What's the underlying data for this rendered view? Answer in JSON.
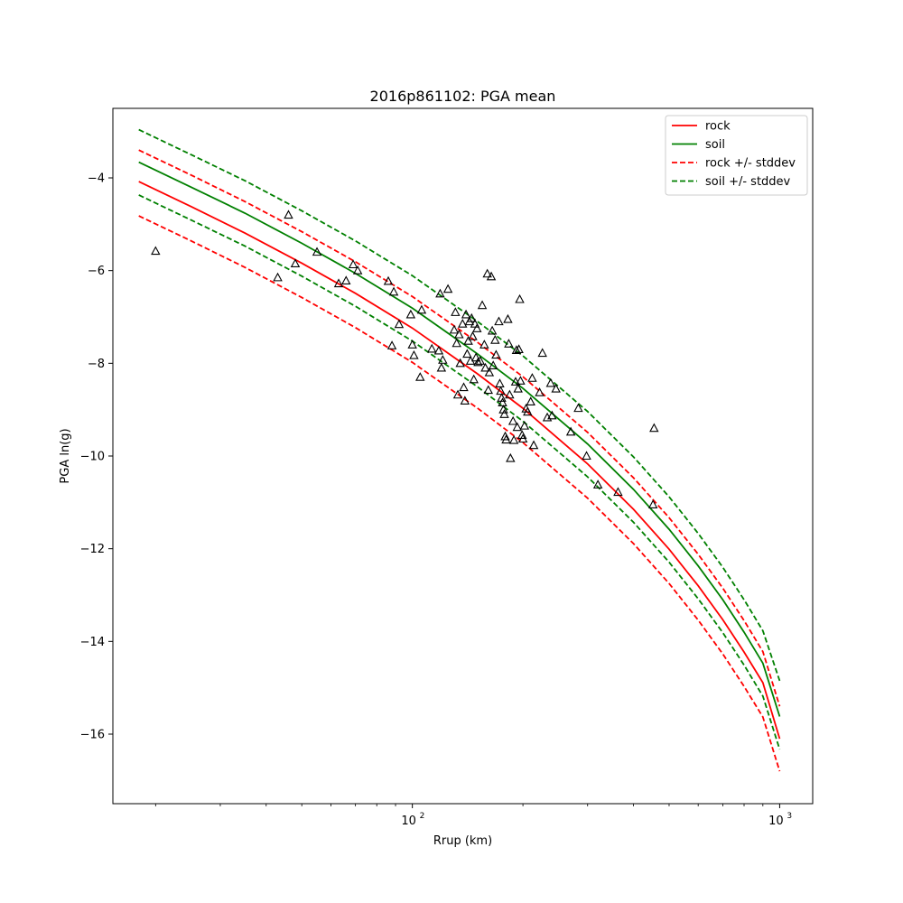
{
  "chart_data": {
    "type": "scatter",
    "title": "2016p861102: PGA mean",
    "xlabel": "Rrup (km)",
    "ylabel": "PGA ln(g)",
    "x_scale": "log",
    "xlim": [
      15.3,
      1230
    ],
    "ylim": [
      -17.5,
      -2.5
    ],
    "x_ticks": [
      {
        "value": 100,
        "base": "10",
        "exp": "2"
      },
      {
        "value": 1000,
        "base": "10",
        "exp": "3"
      }
    ],
    "y_ticks": [
      -16,
      -14,
      -12,
      -10,
      -8,
      -6,
      -4
    ],
    "grid": false,
    "legend": {
      "position": "upper-right",
      "entries": [
        {
          "label": "rock",
          "color": "#ff0000",
          "style": "solid"
        },
        {
          "label": "soil",
          "color": "#008000",
          "style": "solid"
        },
        {
          "label": "rock +/- stddev",
          "color": "#ff0000",
          "style": "dashed"
        },
        {
          "label": "soil +/- stddev",
          "color": "#008000",
          "style": "dashed"
        }
      ]
    },
    "curve_x": [
      18,
      25,
      35,
      50,
      70,
      100,
      150,
      200,
      300,
      400,
      500,
      600,
      700,
      800,
      900,
      1000
    ],
    "series": [
      {
        "name": "rock",
        "color": "#ff0000",
        "style": "solid",
        "y": [
          -4.08,
          -4.62,
          -5.19,
          -5.84,
          -6.49,
          -7.24,
          -8.22,
          -8.97,
          -10.17,
          -11.15,
          -12.01,
          -12.8,
          -13.53,
          -14.23,
          -14.89,
          -16.1
        ]
      },
      {
        "name": "soil",
        "color": "#008000",
        "style": "solid",
        "y": [
          -3.66,
          -4.2,
          -4.76,
          -5.41,
          -6.06,
          -6.81,
          -7.79,
          -8.54,
          -9.74,
          -10.72,
          -11.58,
          -12.37,
          -13.1,
          -13.8,
          -14.47,
          -15.62
        ]
      },
      {
        "name": "rock +/- stddev",
        "color": "#ff0000",
        "style": "dashed",
        "y": [
          -3.4,
          -3.94,
          -4.51,
          -5.16,
          -5.81,
          -6.56,
          -7.54,
          -8.29,
          -9.49,
          -10.47,
          -11.33,
          -12.12,
          -12.85,
          -13.55,
          -14.22,
          -15.4
        ]
      },
      {
        "name": "rock +/- stddev",
        "color": "#ff0000",
        "style": "dashed",
        "y": [
          -4.82,
          -5.36,
          -5.93,
          -6.58,
          -7.23,
          -7.98,
          -8.96,
          -9.71,
          -10.91,
          -11.89,
          -12.75,
          -13.54,
          -14.27,
          -14.97,
          -15.63,
          -16.8
        ]
      },
      {
        "name": "soil +/- stddev",
        "color": "#008000",
        "style": "dashed",
        "y": [
          -2.96,
          -3.5,
          -4.06,
          -4.71,
          -5.36,
          -6.11,
          -7.09,
          -7.84,
          -9.04,
          -10.02,
          -10.88,
          -11.67,
          -12.4,
          -13.1,
          -13.77,
          -14.85
        ]
      },
      {
        "name": "soil +/- stddev",
        "color": "#008000",
        "style": "dashed",
        "y": [
          -4.37,
          -4.91,
          -5.47,
          -6.12,
          -6.77,
          -7.52,
          -8.5,
          -9.25,
          -10.45,
          -11.43,
          -12.29,
          -13.08,
          -13.81,
          -14.51,
          -15.18,
          -16.33
        ]
      }
    ],
    "observations": [
      [
        20,
        -5.58
      ],
      [
        43,
        -6.15
      ],
      [
        46,
        -4.8
      ],
      [
        48,
        -5.85
      ],
      [
        55,
        -5.6
      ],
      [
        63,
        -6.28
      ],
      [
        66,
        -6.22
      ],
      [
        69,
        -5.87
      ],
      [
        71,
        -6.0
      ],
      [
        86,
        -6.23
      ],
      [
        88,
        -7.62
      ],
      [
        89,
        -6.46
      ],
      [
        92,
        -7.16
      ],
      [
        99,
        -6.95
      ],
      [
        100,
        -7.6
      ],
      [
        101,
        -7.83
      ],
      [
        105,
        -8.3
      ],
      [
        106,
        -6.85
      ],
      [
        113,
        -7.69
      ],
      [
        118,
        -7.73
      ],
      [
        119,
        -6.5
      ],
      [
        120,
        -8.1
      ],
      [
        121,
        -7.93
      ],
      [
        125,
        -6.4
      ],
      [
        130,
        -7.28
      ],
      [
        131,
        -6.9
      ],
      [
        132,
        -7.57
      ],
      [
        133,
        -8.68
      ],
      [
        134,
        -7.38
      ],
      [
        135,
        -8.0
      ],
      [
        137,
        -7.15
      ],
      [
        138,
        -8.52
      ],
      [
        139,
        -8.81
      ],
      [
        140,
        -6.95
      ],
      [
        141,
        -7.8
      ],
      [
        142,
        -7.52
      ],
      [
        143,
        -7.1
      ],
      [
        144,
        -7.95
      ],
      [
        145,
        -7.03
      ],
      [
        146,
        -7.42
      ],
      [
        147,
        -8.35
      ],
      [
        148,
        -7.15
      ],
      [
        149,
        -7.88
      ],
      [
        150,
        -7.25
      ],
      [
        151,
        -7.98
      ],
      [
        153,
        -7.95
      ],
      [
        155,
        -6.75
      ],
      [
        157,
        -7.6
      ],
      [
        158,
        -8.1
      ],
      [
        160,
        -6.07
      ],
      [
        161,
        -8.58
      ],
      [
        162,
        -8.2
      ],
      [
        164,
        -6.13
      ],
      [
        165,
        -7.3
      ],
      [
        166,
        -8.05
      ],
      [
        168,
        -7.5
      ],
      [
        169,
        -7.82
      ],
      [
        172,
        -7.1
      ],
      [
        173,
        -8.44
      ],
      [
        174,
        -8.6
      ],
      [
        175,
        -8.75
      ],
      [
        176,
        -8.85
      ],
      [
        177,
        -9.0
      ],
      [
        178,
        -9.1
      ],
      [
        179,
        -9.58
      ],
      [
        180,
        -9.65
      ],
      [
        182,
        -7.05
      ],
      [
        183,
        -7.58
      ],
      [
        184,
        -8.68
      ],
      [
        185,
        -10.05
      ],
      [
        188,
        -9.25
      ],
      [
        189,
        -9.66
      ],
      [
        191,
        -8.4
      ],
      [
        192,
        -7.72
      ],
      [
        193,
        -9.38
      ],
      [
        194,
        -8.55
      ],
      [
        195,
        -7.7
      ],
      [
        196,
        -6.62
      ],
      [
        197,
        -8.38
      ],
      [
        199,
        -9.55
      ],
      [
        200,
        -9.63
      ],
      [
        202,
        -9.35
      ],
      [
        204,
        -8.98
      ],
      [
        206,
        -9.05
      ],
      [
        210,
        -8.83
      ],
      [
        212,
        -8.32
      ],
      [
        214,
        -9.77
      ],
      [
        222,
        -8.63
      ],
      [
        226,
        -7.78
      ],
      [
        233,
        -9.17
      ],
      [
        238,
        -8.43
      ],
      [
        240,
        -9.13
      ],
      [
        246,
        -8.55
      ],
      [
        270,
        -9.48
      ],
      [
        283,
        -8.97
      ],
      [
        298,
        -10.0
      ],
      [
        320,
        -10.62
      ],
      [
        363,
        -10.78
      ],
      [
        452,
        -11.05
      ],
      [
        455,
        -9.4
      ]
    ]
  }
}
